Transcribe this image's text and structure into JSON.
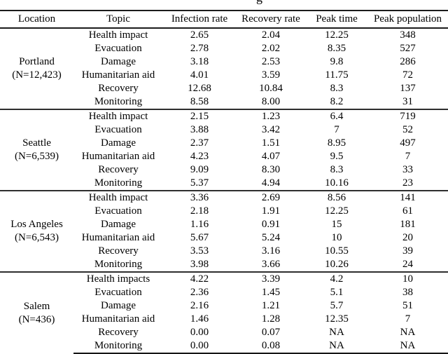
{
  "caption_fragment": "g",
  "colors": {
    "rule": "#1c1c1c",
    "text": "#000000",
    "background": "#ffffff"
  },
  "table": {
    "columns": [
      "Location",
      "Topic",
      "Infection rate",
      "Recovery rate",
      "Peak time",
      "Peak population"
    ],
    "groups": [
      {
        "location": "Portland",
        "n_label": "(N=12,423)",
        "rows": [
          {
            "topic": "Health impact",
            "infection_rate": "2.65",
            "recovery_rate": "2.04",
            "peak_time": "12.25",
            "peak_population": "348"
          },
          {
            "topic": "Evacuation",
            "infection_rate": "2.78",
            "recovery_rate": "2.02",
            "peak_time": "8.35",
            "peak_population": "527"
          },
          {
            "topic": "Damage",
            "infection_rate": "3.18",
            "recovery_rate": "2.53",
            "peak_time": "9.8",
            "peak_population": "286"
          },
          {
            "topic": "Humanitarian aid",
            "infection_rate": "4.01",
            "recovery_rate": "3.59",
            "peak_time": "11.75",
            "peak_population": "72"
          },
          {
            "topic": "Recovery",
            "infection_rate": "12.68",
            "recovery_rate": "10.84",
            "peak_time": "8.3",
            "peak_population": "137"
          },
          {
            "topic": "Monitoring",
            "infection_rate": "8.58",
            "recovery_rate": "8.00",
            "peak_time": "8.2",
            "peak_population": "31"
          }
        ]
      },
      {
        "location": "Seattle",
        "n_label": "(N=6,539)",
        "rows": [
          {
            "topic": "Health impact",
            "infection_rate": "2.15",
            "recovery_rate": "1.23",
            "peak_time": "6.4",
            "peak_population": "719"
          },
          {
            "topic": "Evacuation",
            "infection_rate": "3.88",
            "recovery_rate": "3.42",
            "peak_time": "7",
            "peak_population": "52"
          },
          {
            "topic": "Damage",
            "infection_rate": "2.37",
            "recovery_rate": "1.51",
            "peak_time": "8.95",
            "peak_population": "497"
          },
          {
            "topic": "Humanitarian aid",
            "infection_rate": "4.23",
            "recovery_rate": "4.07",
            "peak_time": "9.5",
            "peak_population": "7"
          },
          {
            "topic": "Recovery",
            "infection_rate": "9.09",
            "recovery_rate": "8.30",
            "peak_time": "8.3",
            "peak_population": "33"
          },
          {
            "topic": "Monitoring",
            "infection_rate": "5.37",
            "recovery_rate": "4.94",
            "peak_time": "10.16",
            "peak_population": "23"
          }
        ]
      },
      {
        "location": "Los Angeles",
        "n_label": "(N=6,543)",
        "rows": [
          {
            "topic": "Health impact",
            "infection_rate": "3.36",
            "recovery_rate": "2.69",
            "peak_time": "8.56",
            "peak_population": "141"
          },
          {
            "topic": "Evacuation",
            "infection_rate": "2.18",
            "recovery_rate": "1.91",
            "peak_time": "12.25",
            "peak_population": "61"
          },
          {
            "topic": "Damage",
            "infection_rate": "1.16",
            "recovery_rate": "0.91",
            "peak_time": "15",
            "peak_population": "181"
          },
          {
            "topic": "Humanitarian aid",
            "infection_rate": "5.67",
            "recovery_rate": "5.24",
            "peak_time": "10",
            "peak_population": "20"
          },
          {
            "topic": "Recovery",
            "infection_rate": "3.53",
            "recovery_rate": "3.16",
            "peak_time": "10.55",
            "peak_population": "39"
          },
          {
            "topic": "Monitoring",
            "infection_rate": "3.98",
            "recovery_rate": "3.66",
            "peak_time": "10.26",
            "peak_population": "24"
          }
        ]
      },
      {
        "location": "Salem",
        "n_label": "(N=436)",
        "rows": [
          {
            "topic": "Health impacts",
            "infection_rate": "4.22",
            "recovery_rate": "3.39",
            "peak_time": "4.2",
            "peak_population": "10"
          },
          {
            "topic": "Evacuation",
            "infection_rate": "2.36",
            "recovery_rate": "1.45",
            "peak_time": "5.1",
            "peak_population": "38"
          },
          {
            "topic": "Damage",
            "infection_rate": "2.16",
            "recovery_rate": "1.21",
            "peak_time": "5.7",
            "peak_population": "51"
          },
          {
            "topic": "Humanitarian aid",
            "infection_rate": "1.46",
            "recovery_rate": "1.28",
            "peak_time": "12.35",
            "peak_population": "7"
          },
          {
            "topic": "Recovery",
            "infection_rate": "0.00",
            "recovery_rate": "0.07",
            "peak_time": "NA",
            "peak_population": "NA"
          },
          {
            "topic": "Monitoring",
            "infection_rate": "0.00",
            "recovery_rate": "0.08",
            "peak_time": "NA",
            "peak_population": "NA"
          }
        ]
      }
    ]
  }
}
